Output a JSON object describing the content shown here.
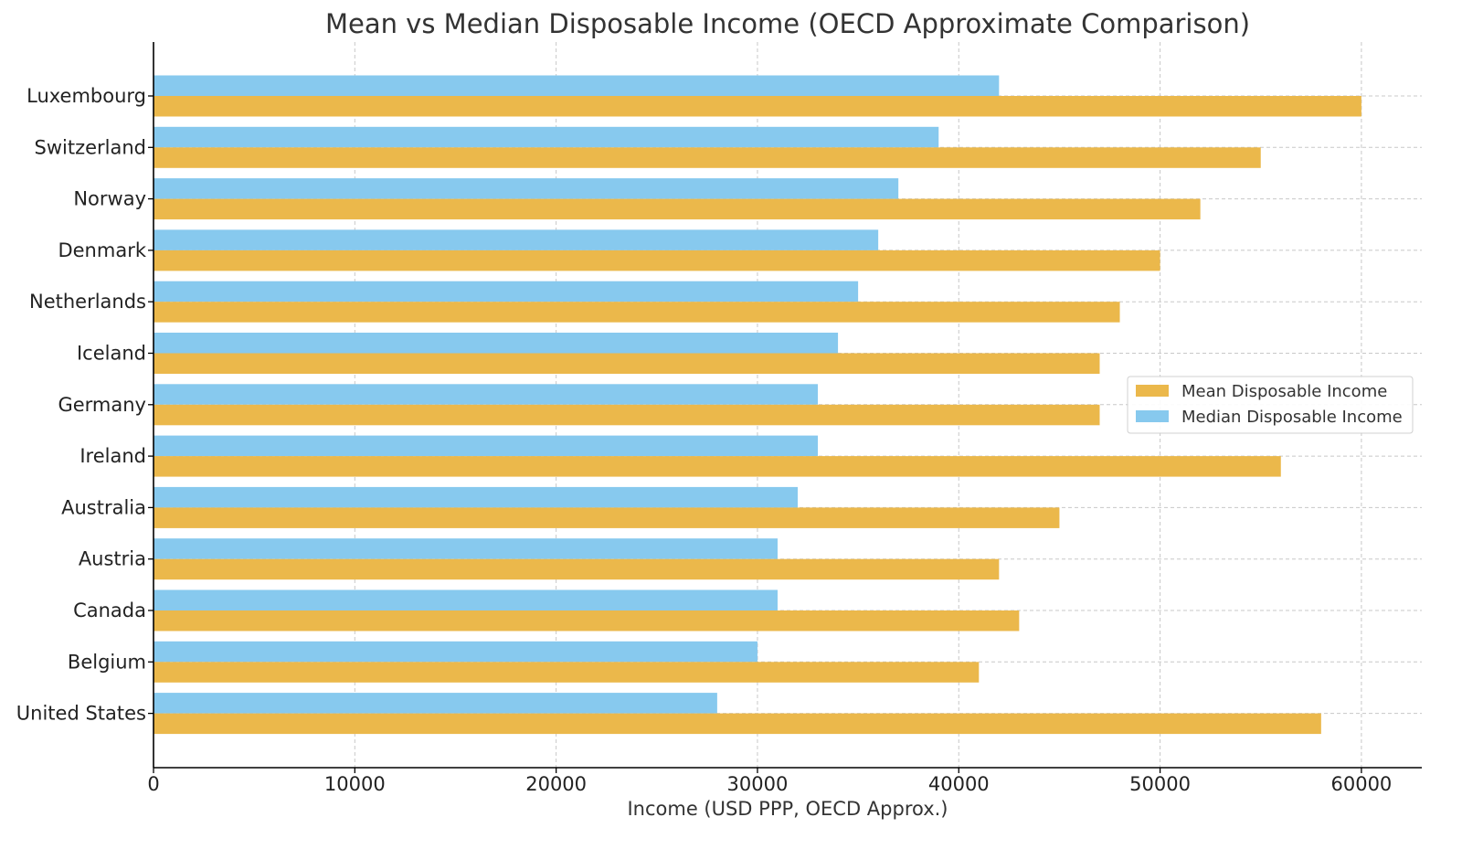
{
  "chart_data": {
    "type": "bar",
    "orientation": "horizontal",
    "title": "Mean vs Median Disposable Income (OECD Approximate Comparison)",
    "xlabel": "Income (USD PPP, OECD Approx.)",
    "ylabel": "",
    "xlim": [
      0,
      63000
    ],
    "xticks": [
      0,
      10000,
      20000,
      30000,
      40000,
      50000,
      60000
    ],
    "xtick_labels": [
      "0",
      "10000",
      "20000",
      "30000",
      "40000",
      "50000",
      "60000"
    ],
    "grid": true,
    "legend_position": "center-right",
    "categories": [
      "Luxembourg",
      "Switzerland",
      "Norway",
      "Denmark",
      "Netherlands",
      "Iceland",
      "Germany",
      "Ireland",
      "Australia",
      "Austria",
      "Canada",
      "Belgium",
      "United States"
    ],
    "series": [
      {
        "name": "Mean Disposable Income",
        "color": "#EBB84B",
        "values": [
          60000,
          55000,
          52000,
          50000,
          48000,
          47000,
          47000,
          56000,
          45000,
          42000,
          43000,
          41000,
          58000
        ]
      },
      {
        "name": "Median Disposable Income",
        "color": "#87C9EE",
        "values": [
          42000,
          39000,
          37000,
          36000,
          35000,
          34000,
          33000,
          33000,
          32000,
          31000,
          31000,
          30000,
          28000
        ]
      }
    ]
  }
}
